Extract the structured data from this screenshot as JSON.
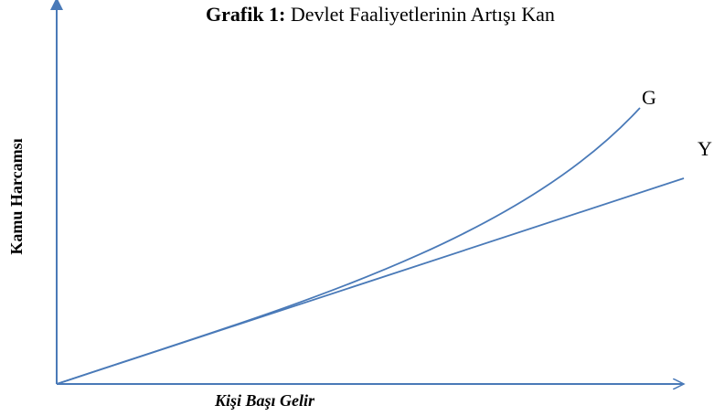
{
  "title": {
    "label": "Grafik 1:",
    "text": "Devlet Faaliyetlerinin Artışı Kan"
  },
  "axes": {
    "y_label": "Kamu Harcamsı",
    "x_label": "Kişi Başı Gelir"
  },
  "curves": [
    {
      "label": "G"
    },
    {
      "label": "Y"
    }
  ]
}
